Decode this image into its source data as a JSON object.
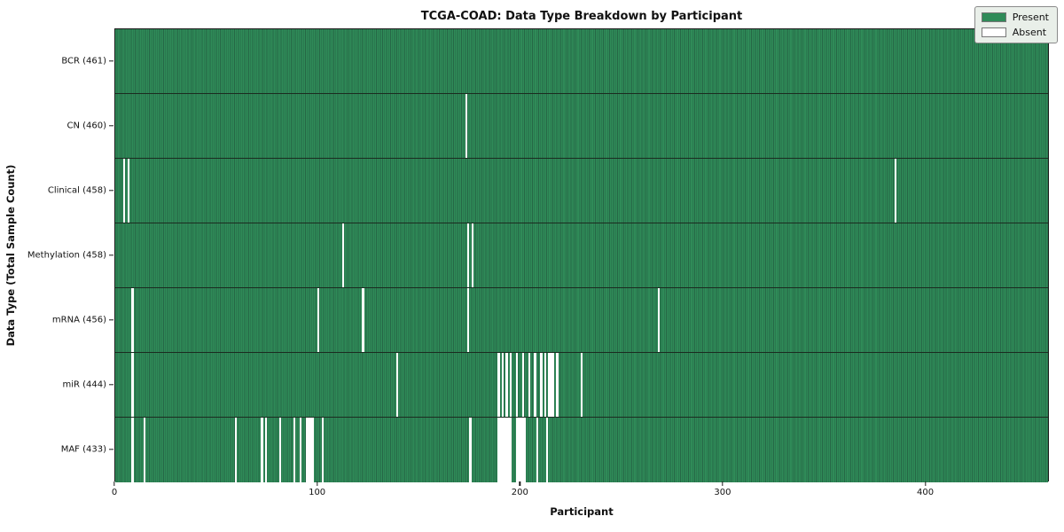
{
  "title": "TCGA-COAD: Data Type Breakdown by Participant",
  "chart_data": {
    "type": "heatmap",
    "title": "TCGA-COAD: Data Type Breakdown by Participant",
    "xlabel": "Participant",
    "ylabel": "Data Type (Total Sample Count)",
    "n_participants": 461,
    "x_ticks": [
      0,
      100,
      200,
      300,
      400
    ],
    "x_range": [
      0,
      461
    ],
    "grid": false,
    "legend_position": "upper right",
    "legend": [
      {
        "label": "Present",
        "color": "#2f8b58"
      },
      {
        "label": "Absent",
        "color": "#ffffff"
      }
    ],
    "colors": {
      "present": "#2f8b58",
      "present_edge": "#266746",
      "absent": "#ffffff",
      "axis": "#1a1a1a",
      "legend_bg": "#e9efe9"
    },
    "series": [
      {
        "name": "BCR",
        "label": "BCR (461)",
        "present_count": 461,
        "absent_participants": []
      },
      {
        "name": "CN",
        "label": "CN (460)",
        "present_count": 460,
        "absent_participants": [
          173
        ]
      },
      {
        "name": "Clinical",
        "label": "Clinical (458)",
        "present_count": 458,
        "absent_participants": [
          4,
          6,
          385
        ]
      },
      {
        "name": "Methylation",
        "label": "Methylation (458)",
        "present_count": 458,
        "absent_participants": [
          112,
          174,
          176
        ]
      },
      {
        "name": "mRNA",
        "label": "mRNA (456)",
        "present_count": 456,
        "absent_participants": [
          8,
          100,
          122,
          174,
          268
        ]
      },
      {
        "name": "miR",
        "label": "miR (444)",
        "present_count": 444,
        "absent_participants": [
          8,
          139,
          189,
          191,
          193,
          195,
          198,
          201,
          204,
          207,
          210,
          212,
          214,
          215,
          216,
          218,
          230
        ]
      },
      {
        "name": "MAF",
        "label": "MAF (433)",
        "present_count": 433,
        "absent_participants": [
          8,
          14,
          59,
          72,
          74,
          81,
          88,
          91,
          94,
          95,
          96,
          97,
          102,
          175,
          189,
          190,
          191,
          192,
          193,
          194,
          195,
          198,
          199,
          200,
          201,
          202,
          208,
          213
        ]
      }
    ]
  }
}
